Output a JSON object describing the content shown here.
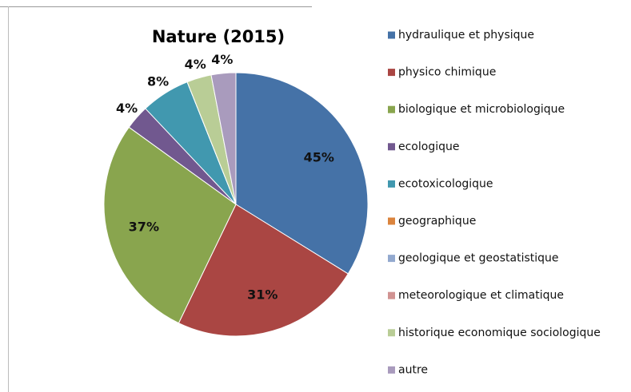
{
  "chart_data": {
    "type": "pie",
    "title": "Nature (2015)",
    "categories": [
      "hydraulique et physique",
      "physico chimique",
      "biologique et microbiologique",
      "ecologique",
      "ecotoxicologique",
      "geographique",
      "geologique et geostatistique",
      "meteorologique et climatique",
      "historique economique  sociologique",
      "autre"
    ],
    "values": [
      45,
      31,
      37,
      4,
      8,
      0,
      0,
      0,
      4,
      4
    ],
    "value_labels": [
      "45%",
      "31%",
      "37%",
      "4%",
      "8%",
      null,
      null,
      null,
      "4%",
      "4%"
    ],
    "colors": [
      "#4572a7",
      "#aa4643",
      "#89a54e",
      "#71588f",
      "#4198af",
      "#db843d",
      "#93a9cf",
      "#d19392",
      "#b9cd96",
      "#a99bbd"
    ],
    "legend": "right"
  }
}
